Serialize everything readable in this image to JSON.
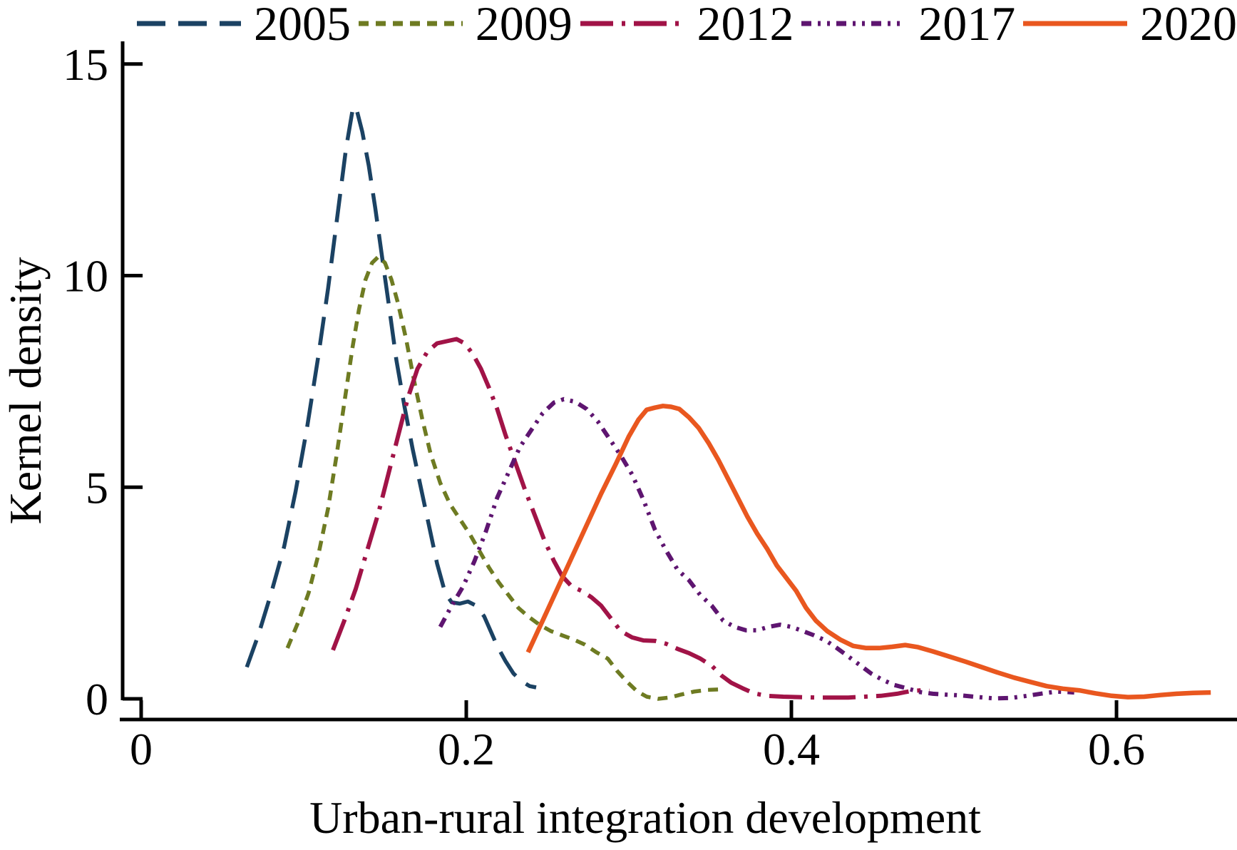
{
  "chart_data": {
    "type": "line",
    "title": "",
    "xlabel": "Urban-rural integration development",
    "ylabel": "Kernel density",
    "xlim": [
      0,
      0.674
    ],
    "ylim": [
      0,
      15.1
    ],
    "grid": false,
    "legend_position": "top",
    "axis_color": "#000000",
    "background": "#ffffff",
    "x_ticks": [
      {
        "v": 0,
        "label": "0"
      },
      {
        "v": 0.2,
        "label": "0.2"
      },
      {
        "v": 0.4,
        "label": "0.4"
      },
      {
        "v": 0.6,
        "label": "0.6"
      }
    ],
    "y_ticks": [
      {
        "v": 0,
        "label": "0"
      },
      {
        "v": 5,
        "label": "5"
      },
      {
        "v": 10,
        "label": "10"
      },
      {
        "v": 15,
        "label": "15"
      }
    ],
    "series": [
      {
        "name": "2005",
        "color": "#1b4263",
        "dash": "40 18",
        "width": 5.5,
        "points": [
          [
            0.065,
            0.75
          ],
          [
            0.072,
            1.5
          ],
          [
            0.08,
            2.5
          ],
          [
            0.088,
            3.6
          ],
          [
            0.095,
            4.9
          ],
          [
            0.102,
            6.4
          ],
          [
            0.109,
            8.1
          ],
          [
            0.115,
            9.7
          ],
          [
            0.121,
            11.5
          ],
          [
            0.126,
            13.0
          ],
          [
            0.13,
            13.9
          ],
          [
            0.132,
            14.0
          ],
          [
            0.136,
            13.4
          ],
          [
            0.14,
            12.6
          ],
          [
            0.144,
            11.6
          ],
          [
            0.148,
            10.5
          ],
          [
            0.152,
            9.4
          ],
          [
            0.157,
            8.0
          ],
          [
            0.162,
            6.9
          ],
          [
            0.167,
            5.9
          ],
          [
            0.172,
            5.0
          ],
          [
            0.177,
            4.1
          ],
          [
            0.182,
            3.2
          ],
          [
            0.187,
            2.5
          ],
          [
            0.191,
            2.28
          ],
          [
            0.196,
            2.25
          ],
          [
            0.201,
            2.3
          ],
          [
            0.206,
            2.2
          ],
          [
            0.211,
            1.95
          ],
          [
            0.215,
            1.6
          ],
          [
            0.219,
            1.25
          ],
          [
            0.224,
            0.9
          ],
          [
            0.229,
            0.6
          ],
          [
            0.234,
            0.42
          ],
          [
            0.239,
            0.3
          ],
          [
            0.243,
            0.27
          ]
        ]
      },
      {
        "name": "2009",
        "color": "#6e7b22",
        "dash": "14 10",
        "width": 5.5,
        "points": [
          [
            0.09,
            1.2
          ],
          [
            0.097,
            1.85
          ],
          [
            0.103,
            2.5
          ],
          [
            0.109,
            3.4
          ],
          [
            0.115,
            4.5
          ],
          [
            0.12,
            5.7
          ],
          [
            0.125,
            7.0
          ],
          [
            0.13,
            8.3
          ],
          [
            0.134,
            9.2
          ],
          [
            0.138,
            9.9
          ],
          [
            0.142,
            10.3
          ],
          [
            0.146,
            10.45
          ],
          [
            0.15,
            10.3
          ],
          [
            0.154,
            9.9
          ],
          [
            0.158,
            9.35
          ],
          [
            0.163,
            8.5
          ],
          [
            0.168,
            7.5
          ],
          [
            0.173,
            6.6
          ],
          [
            0.178,
            5.8
          ],
          [
            0.184,
            5.1
          ],
          [
            0.19,
            4.6
          ],
          [
            0.196,
            4.25
          ],
          [
            0.202,
            3.9
          ],
          [
            0.208,
            3.5
          ],
          [
            0.214,
            3.1
          ],
          [
            0.22,
            2.75
          ],
          [
            0.226,
            2.45
          ],
          [
            0.232,
            2.15
          ],
          [
            0.238,
            1.95
          ],
          [
            0.245,
            1.75
          ],
          [
            0.252,
            1.6
          ],
          [
            0.259,
            1.5
          ],
          [
            0.266,
            1.4
          ],
          [
            0.273,
            1.28
          ],
          [
            0.28,
            1.1
          ],
          [
            0.287,
            0.95
          ],
          [
            0.293,
            0.65
          ],
          [
            0.299,
            0.4
          ],
          [
            0.305,
            0.18
          ],
          [
            0.311,
            0.05
          ],
          [
            0.318,
            0.0
          ],
          [
            0.325,
            0.03
          ],
          [
            0.332,
            0.1
          ],
          [
            0.34,
            0.17
          ],
          [
            0.348,
            0.21
          ],
          [
            0.355,
            0.22
          ]
        ]
      },
      {
        "name": "2012",
        "color": "#a11347",
        "dash": "46 12 5 12",
        "width": 6,
        "points": [
          [
            0.118,
            1.15
          ],
          [
            0.125,
            1.85
          ],
          [
            0.132,
            2.6
          ],
          [
            0.139,
            3.5
          ],
          [
            0.146,
            4.4
          ],
          [
            0.152,
            5.3
          ],
          [
            0.158,
            6.2
          ],
          [
            0.164,
            7.1
          ],
          [
            0.17,
            7.8
          ],
          [
            0.176,
            8.2
          ],
          [
            0.182,
            8.4
          ],
          [
            0.188,
            8.45
          ],
          [
            0.194,
            8.5
          ],
          [
            0.199,
            8.4
          ],
          [
            0.204,
            8.15
          ],
          [
            0.209,
            7.8
          ],
          [
            0.214,
            7.35
          ],
          [
            0.219,
            6.85
          ],
          [
            0.224,
            6.25
          ],
          [
            0.23,
            5.6
          ],
          [
            0.236,
            4.95
          ],
          [
            0.242,
            4.35
          ],
          [
            0.248,
            3.75
          ],
          [
            0.254,
            3.25
          ],
          [
            0.259,
            2.9
          ],
          [
            0.265,
            2.65
          ],
          [
            0.271,
            2.55
          ],
          [
            0.277,
            2.4
          ],
          [
            0.283,
            2.2
          ],
          [
            0.289,
            1.9
          ],
          [
            0.295,
            1.6
          ],
          [
            0.302,
            1.45
          ],
          [
            0.309,
            1.38
          ],
          [
            0.316,
            1.37
          ],
          [
            0.323,
            1.3
          ],
          [
            0.33,
            1.18
          ],
          [
            0.337,
            1.08
          ],
          [
            0.344,
            0.95
          ],
          [
            0.351,
            0.78
          ],
          [
            0.357,
            0.55
          ],
          [
            0.363,
            0.38
          ],
          [
            0.37,
            0.25
          ],
          [
            0.377,
            0.13
          ],
          [
            0.385,
            0.07
          ],
          [
            0.395,
            0.05
          ],
          [
            0.405,
            0.04
          ],
          [
            0.415,
            0.03
          ],
          [
            0.425,
            0.03
          ],
          [
            0.435,
            0.03
          ],
          [
            0.445,
            0.05
          ],
          [
            0.455,
            0.07
          ],
          [
            0.465,
            0.12
          ],
          [
            0.473,
            0.18
          ],
          [
            0.48,
            0.2
          ],
          [
            0.485,
            0.19
          ]
        ]
      },
      {
        "name": "2017",
        "color": "#5e1570",
        "dash": "14 9 4 9 4 9",
        "width": 6,
        "points": [
          [
            0.184,
            1.7
          ],
          [
            0.191,
            2.2
          ],
          [
            0.198,
            2.65
          ],
          [
            0.205,
            3.25
          ],
          [
            0.212,
            3.95
          ],
          [
            0.219,
            4.75
          ],
          [
            0.226,
            5.35
          ],
          [
            0.233,
            5.95
          ],
          [
            0.24,
            6.35
          ],
          [
            0.247,
            6.75
          ],
          [
            0.254,
            7.0
          ],
          [
            0.26,
            7.08
          ],
          [
            0.267,
            7.02
          ],
          [
            0.274,
            6.85
          ],
          [
            0.281,
            6.55
          ],
          [
            0.288,
            6.15
          ],
          [
            0.295,
            5.75
          ],
          [
            0.302,
            5.3
          ],
          [
            0.309,
            4.7
          ],
          [
            0.316,
            4.0
          ],
          [
            0.323,
            3.5
          ],
          [
            0.33,
            3.05
          ],
          [
            0.337,
            2.8
          ],
          [
            0.344,
            2.45
          ],
          [
            0.351,
            2.2
          ],
          [
            0.358,
            1.85
          ],
          [
            0.365,
            1.7
          ],
          [
            0.372,
            1.62
          ],
          [
            0.379,
            1.62
          ],
          [
            0.386,
            1.7
          ],
          [
            0.393,
            1.75
          ],
          [
            0.4,
            1.7
          ],
          [
            0.407,
            1.6
          ],
          [
            0.414,
            1.5
          ],
          [
            0.421,
            1.38
          ],
          [
            0.428,
            1.2
          ],
          [
            0.435,
            1.0
          ],
          [
            0.442,
            0.8
          ],
          [
            0.449,
            0.6
          ],
          [
            0.456,
            0.45
          ],
          [
            0.463,
            0.33
          ],
          [
            0.471,
            0.25
          ],
          [
            0.479,
            0.16
          ],
          [
            0.487,
            0.12
          ],
          [
            0.495,
            0.1
          ],
          [
            0.505,
            0.08
          ],
          [
            0.515,
            0.04
          ],
          [
            0.525,
            0.01
          ],
          [
            0.535,
            0.02
          ],
          [
            0.545,
            0.07
          ],
          [
            0.555,
            0.13
          ],
          [
            0.563,
            0.17
          ],
          [
            0.57,
            0.16
          ],
          [
            0.574,
            0.15
          ]
        ]
      },
      {
        "name": "2020",
        "color": "#e9571f",
        "dash": "",
        "width": 6.5,
        "points": [
          [
            0.238,
            1.1
          ],
          [
            0.247,
            1.85
          ],
          [
            0.256,
            2.6
          ],
          [
            0.265,
            3.35
          ],
          [
            0.274,
            4.1
          ],
          [
            0.283,
            4.85
          ],
          [
            0.292,
            5.55
          ],
          [
            0.3,
            6.2
          ],
          [
            0.306,
            6.6
          ],
          [
            0.311,
            6.83
          ],
          [
            0.316,
            6.88
          ],
          [
            0.321,
            6.92
          ],
          [
            0.326,
            6.9
          ],
          [
            0.331,
            6.85
          ],
          [
            0.337,
            6.65
          ],
          [
            0.343,
            6.4
          ],
          [
            0.349,
            6.05
          ],
          [
            0.355,
            5.65
          ],
          [
            0.361,
            5.2
          ],
          [
            0.367,
            4.75
          ],
          [
            0.373,
            4.3
          ],
          [
            0.379,
            3.9
          ],
          [
            0.385,
            3.55
          ],
          [
            0.391,
            3.15
          ],
          [
            0.397,
            2.85
          ],
          [
            0.403,
            2.55
          ],
          [
            0.409,
            2.15
          ],
          [
            0.415,
            1.85
          ],
          [
            0.422,
            1.6
          ],
          [
            0.43,
            1.4
          ],
          [
            0.438,
            1.25
          ],
          [
            0.446,
            1.2
          ],
          [
            0.454,
            1.2
          ],
          [
            0.462,
            1.23
          ],
          [
            0.47,
            1.27
          ],
          [
            0.478,
            1.22
          ],
          [
            0.487,
            1.12
          ],
          [
            0.497,
            1.0
          ],
          [
            0.507,
            0.88
          ],
          [
            0.517,
            0.75
          ],
          [
            0.527,
            0.62
          ],
          [
            0.537,
            0.5
          ],
          [
            0.547,
            0.4
          ],
          [
            0.557,
            0.3
          ],
          [
            0.567,
            0.24
          ],
          [
            0.577,
            0.2
          ],
          [
            0.587,
            0.13
          ],
          [
            0.597,
            0.07
          ],
          [
            0.607,
            0.04
          ],
          [
            0.617,
            0.05
          ],
          [
            0.627,
            0.09
          ],
          [
            0.637,
            0.12
          ],
          [
            0.647,
            0.14
          ],
          [
            0.658,
            0.15
          ]
        ]
      }
    ]
  }
}
